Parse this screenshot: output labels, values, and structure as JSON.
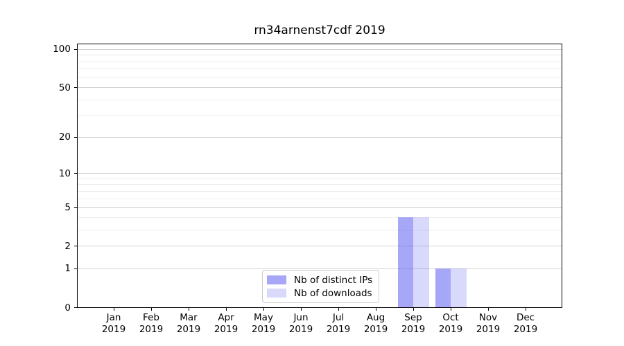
{
  "title": "rn34arnenst7cdf 2019",
  "chart_data": {
    "type": "bar",
    "title": "rn34arnenst7cdf 2019",
    "categories": [
      "Jan 2019",
      "Feb 2019",
      "Mar 2019",
      "Apr 2019",
      "May 2019",
      "Jun 2019",
      "Jul 2019",
      "Aug 2019",
      "Sep 2019",
      "Oct 2019",
      "Nov 2019",
      "Dec 2019"
    ],
    "series": [
      {
        "name": "Nb of distinct IPs",
        "color": "rgba(80,80,240,0.5)",
        "swatch_hex": "#a8a8f7",
        "values": [
          0,
          0,
          0,
          0,
          0,
          0,
          0,
          0,
          4,
          1,
          0,
          0
        ]
      },
      {
        "name": "Nb of downloads",
        "color": "rgba(80,80,240,0.22)",
        "swatch_hex": "#d8d8fa",
        "values": [
          0,
          0,
          0,
          0,
          0,
          0,
          0,
          0,
          4,
          1,
          0,
          0
        ]
      }
    ],
    "xlabel": "",
    "ylabel": "",
    "yscale": "log1p",
    "ylim": [
      0,
      109
    ],
    "y_major_ticks": [
      0,
      1,
      2,
      5,
      10,
      20,
      50,
      100
    ],
    "y_minor_ticks": [
      3,
      4,
      6,
      7,
      8,
      9,
      30,
      40,
      60,
      70,
      80,
      90
    ],
    "grid": "horizontal major and minor gridlines",
    "legend_position": "lower center"
  },
  "colors": {
    "background": "#ffffff",
    "bar_distinct_ips": "#a8a8f7",
    "bar_downloads": "#d8d8fa",
    "grid_major": "#d2d2d2",
    "grid_minor": "#ececec",
    "spine": "#000000",
    "legend_border": "#cccccc",
    "text": "#000000"
  }
}
